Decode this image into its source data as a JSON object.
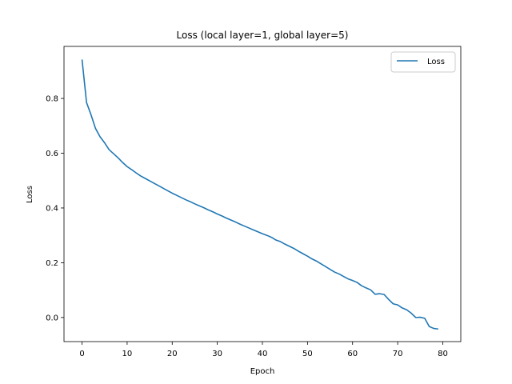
{
  "chart_data": {
    "type": "line",
    "title": "Loss (local layer=1, global layer=5)",
    "xlabel": "Epoch",
    "ylabel": "Loss",
    "xlim": [
      -4,
      84
    ],
    "ylim": [
      -0.088,
      0.99
    ],
    "xticks": [
      0,
      10,
      20,
      30,
      40,
      50,
      60,
      70,
      80
    ],
    "xtick_labels": [
      "0",
      "10",
      "20",
      "30",
      "40",
      "50",
      "60",
      "70",
      "80"
    ],
    "yticks": [
      0.0,
      0.2,
      0.4,
      0.6,
      0.8
    ],
    "ytick_labels": [
      "0.0",
      "0.2",
      "0.4",
      "0.6",
      "0.8"
    ],
    "grid": false,
    "legend": {
      "position": "top-right",
      "entries": [
        "Loss"
      ]
    },
    "series": [
      {
        "name": "Loss",
        "color": "#1f77b4",
        "x": [
          0,
          1,
          2,
          3,
          4,
          5,
          6,
          7,
          8,
          9,
          10,
          11,
          12,
          13,
          14,
          15,
          16,
          17,
          18,
          19,
          20,
          21,
          22,
          23,
          24,
          25,
          26,
          27,
          28,
          29,
          30,
          31,
          32,
          33,
          34,
          35,
          36,
          37,
          38,
          39,
          40,
          41,
          42,
          43,
          44,
          45,
          46,
          47,
          48,
          49,
          50,
          51,
          52,
          53,
          54,
          55,
          56,
          57,
          58,
          59,
          60,
          61,
          62,
          63,
          64,
          65,
          66,
          67,
          68,
          69,
          70,
          71,
          72,
          73,
          74,
          75,
          76,
          77,
          78,
          79
        ],
        "values": [
          0.942,
          0.785,
          0.74,
          0.69,
          0.66,
          0.638,
          0.613,
          0.598,
          0.583,
          0.566,
          0.551,
          0.54,
          0.528,
          0.517,
          0.508,
          0.499,
          0.49,
          0.481,
          0.472,
          0.463,
          0.454,
          0.446,
          0.438,
          0.43,
          0.423,
          0.415,
          0.408,
          0.401,
          0.393,
          0.386,
          0.378,
          0.371,
          0.363,
          0.356,
          0.349,
          0.341,
          0.334,
          0.327,
          0.32,
          0.313,
          0.306,
          0.3,
          0.293,
          0.283,
          0.277,
          0.268,
          0.26,
          0.252,
          0.242,
          0.233,
          0.224,
          0.214,
          0.206,
          0.196,
          0.186,
          0.176,
          0.166,
          0.159,
          0.15,
          0.141,
          0.135,
          0.128,
          0.116,
          0.108,
          0.101,
          0.085,
          0.087,
          0.084,
          0.066,
          0.05,
          0.046,
          0.035,
          0.028,
          0.016,
          0.0,
          0.001,
          -0.003,
          -0.033,
          -0.04,
          -0.042
        ]
      }
    ]
  }
}
